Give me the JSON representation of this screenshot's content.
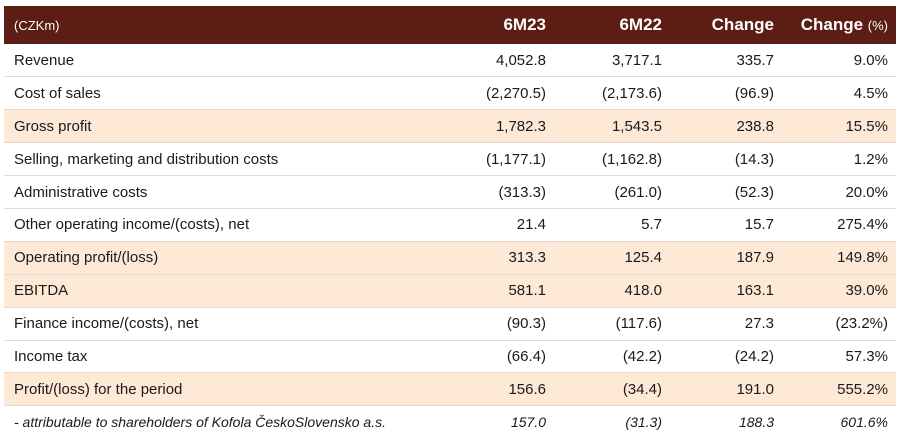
{
  "header": {
    "unit": "(CZKm)",
    "col1": "6M23",
    "col2": "6M22",
    "col3": "Change",
    "col4": "Change",
    "col4_suffix": "(%)"
  },
  "rows": [
    {
      "label": "Revenue",
      "v1": "4,052.8",
      "v2": "3,717.1",
      "v3": "335.7",
      "v4": "9.0%"
    },
    {
      "label": "Cost of sales",
      "v1": "(2,270.5)",
      "v2": "(2,173.6)",
      "v3": "(96.9)",
      "v4": "4.5%"
    },
    {
      "label": "Gross profit",
      "v1": "1,782.3",
      "v2": "1,543.5",
      "v3": "238.8",
      "v4": "15.5%"
    },
    {
      "label": "Selling, marketing and distribution costs",
      "v1": "(1,177.1)",
      "v2": "(1,162.8)",
      "v3": "(14.3)",
      "v4": "1.2%"
    },
    {
      "label": "Administrative costs",
      "v1": "(313.3)",
      "v2": "(261.0)",
      "v3": "(52.3)",
      "v4": "20.0%"
    },
    {
      "label": "Other operating income/(costs), net",
      "v1": "21.4",
      "v2": "5.7",
      "v3": "15.7",
      "v4": "275.4%"
    },
    {
      "label": "Operating profit/(loss)",
      "v1": "313.3",
      "v2": "125.4",
      "v3": "187.9",
      "v4": "149.8%"
    },
    {
      "label": "EBITDA",
      "v1": "581.1",
      "v2": "418.0",
      "v3": "163.1",
      "v4": "39.0%"
    },
    {
      "label": "Finance income/(costs), net",
      "v1": "(90.3)",
      "v2": "(117.6)",
      "v3": "27.3",
      "v4": "(23.2%)"
    },
    {
      "label": "Income tax",
      "v1": "(66.4)",
      "v2": "(42.2)",
      "v3": "(24.2)",
      "v4": "57.3%"
    },
    {
      "label": "Profit/(loss) for the period",
      "v1": "156.6",
      "v2": "(34.4)",
      "v3": "191.0",
      "v4": "555.2%"
    },
    {
      "label": "- attributable to shareholders of Kofola ČeskoSlovensko a.s.",
      "v1": "157.0",
      "v2": "(31.3)",
      "v3": "188.3",
      "v4": "601.6%"
    }
  ]
}
